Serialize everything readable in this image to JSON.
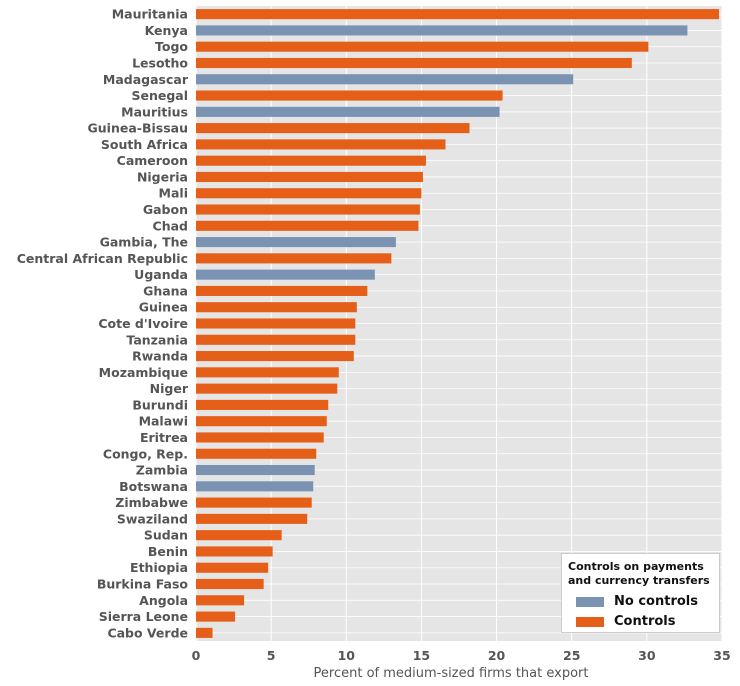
{
  "chart_data": {
    "type": "bar",
    "orientation": "horizontal",
    "xlabel": "Percent of medium-sized firms that export",
    "xlim": [
      0,
      35
    ],
    "xticks": [
      0,
      5,
      10,
      15,
      20,
      25,
      30,
      35
    ],
    "grid": true,
    "legend": {
      "title_line1": "Controls on payments",
      "title_line2": "and currency transfers",
      "placement": "bottom-right",
      "entries": [
        {
          "label": "No controls",
          "color": "#7b93b3"
        },
        {
          "label": "Controls",
          "color": "#e55f19"
        }
      ]
    },
    "bars": [
      {
        "category": "Mauritania",
        "value": 34.8,
        "group": "Controls"
      },
      {
        "category": "Kenya",
        "value": 32.7,
        "group": "No controls"
      },
      {
        "category": "Togo",
        "value": 30.1,
        "group": "Controls"
      },
      {
        "category": "Lesotho",
        "value": 29.0,
        "group": "Controls"
      },
      {
        "category": "Madagascar",
        "value": 25.1,
        "group": "No controls"
      },
      {
        "category": "Senegal",
        "value": 20.4,
        "group": "Controls"
      },
      {
        "category": "Mauritius",
        "value": 20.2,
        "group": "No controls"
      },
      {
        "category": "Guinea-Bissau",
        "value": 18.2,
        "group": "Controls"
      },
      {
        "category": "South Africa",
        "value": 16.6,
        "group": "Controls"
      },
      {
        "category": "Cameroon",
        "value": 15.3,
        "group": "Controls"
      },
      {
        "category": "Nigeria",
        "value": 15.1,
        "group": "Controls"
      },
      {
        "category": "Mali",
        "value": 15.0,
        "group": "Controls"
      },
      {
        "category": "Gabon",
        "value": 14.9,
        "group": "Controls"
      },
      {
        "category": "Chad",
        "value": 14.8,
        "group": "Controls"
      },
      {
        "category": "Gambia, The",
        "value": 13.3,
        "group": "No controls"
      },
      {
        "category": "Central African Republic",
        "value": 13.0,
        "group": "Controls"
      },
      {
        "category": "Uganda",
        "value": 11.9,
        "group": "No controls"
      },
      {
        "category": "Ghana",
        "value": 11.4,
        "group": "Controls"
      },
      {
        "category": "Guinea",
        "value": 10.7,
        "group": "Controls"
      },
      {
        "category": "Cote d'Ivoire",
        "value": 10.6,
        "group": "Controls"
      },
      {
        "category": "Tanzania",
        "value": 10.6,
        "group": "Controls"
      },
      {
        "category": "Rwanda",
        "value": 10.5,
        "group": "Controls"
      },
      {
        "category": "Mozambique",
        "value": 9.5,
        "group": "Controls"
      },
      {
        "category": "Niger",
        "value": 9.4,
        "group": "Controls"
      },
      {
        "category": "Burundi",
        "value": 8.8,
        "group": "Controls"
      },
      {
        "category": "Malawi",
        "value": 8.7,
        "group": "Controls"
      },
      {
        "category": "Eritrea",
        "value": 8.5,
        "group": "Controls"
      },
      {
        "category": "Congo, Rep.",
        "value": 8.0,
        "group": "Controls"
      },
      {
        "category": "Zambia",
        "value": 7.9,
        "group": "No controls"
      },
      {
        "category": "Botswana",
        "value": 7.8,
        "group": "No controls"
      },
      {
        "category": "Zimbabwe",
        "value": 7.7,
        "group": "Controls"
      },
      {
        "category": "Swaziland",
        "value": 7.4,
        "group": "Controls"
      },
      {
        "category": "Sudan",
        "value": 5.7,
        "group": "Controls"
      },
      {
        "category": "Benin",
        "value": 5.1,
        "group": "Controls"
      },
      {
        "category": "Ethiopia",
        "value": 4.8,
        "group": "Controls"
      },
      {
        "category": "Burkina Faso",
        "value": 4.5,
        "group": "Controls"
      },
      {
        "category": "Angola",
        "value": 3.2,
        "group": "Controls"
      },
      {
        "category": "Sierra Leone",
        "value": 2.6,
        "group": "Controls"
      },
      {
        "category": "Cabo Verde",
        "value": 1.1,
        "group": "Controls"
      }
    ]
  },
  "colors": {
    "plot_background": "#e5e5e5",
    "grid": "#ffffff",
    "no_controls": "#7b93b3",
    "controls": "#e55f19"
  }
}
